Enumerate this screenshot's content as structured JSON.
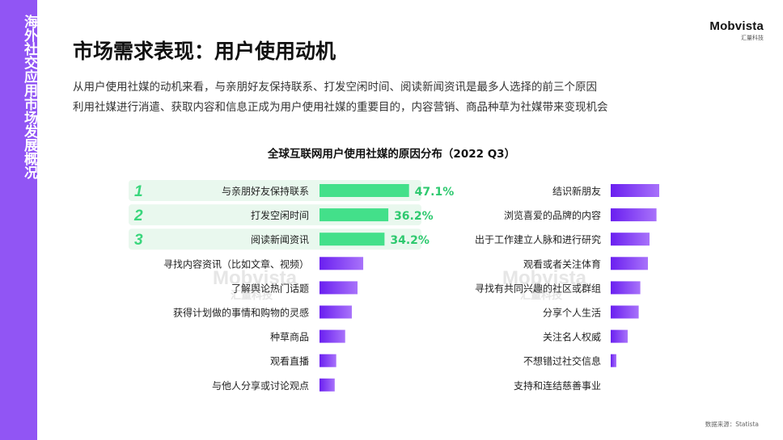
{
  "sidebar": {
    "text": "海外社交应用市场发展概况"
  },
  "logo": {
    "word": "Mobvista",
    "sub": "汇量科技"
  },
  "header": {
    "title": "市场需求表现：用户使用动机"
  },
  "description": {
    "line1": "从用户使用社媒的动机来看，与亲朋好友保持联系、打发空闲时间、阅读新闻资讯是最多人选择的前三个原因",
    "line2": "利用社媒进行消遣、获取内容和信息正成为用户使用社媒的重要目的，内容营销、商品种草为社媒带来变现机会"
  },
  "source": "数据来源：Statista",
  "colors": {
    "sidebar": "#9155f4",
    "bar_gradient_start": "#6a1ff0",
    "bar_gradient_end": "#a872fa",
    "top_bar": "#43e08a",
    "top_highlight": "#e9f8ee",
    "top_value": "#2ec96f",
    "rank": "#39d67c"
  },
  "chart_data": {
    "type": "bar",
    "orientation": "horizontal",
    "title": "全球互联网用户使用社媒的原因分布（2022 Q3）",
    "unit": "%",
    "left": {
      "categories": [
        "与亲朋好友保持联系",
        "打发空闲时间",
        "阅读新闻资讯",
        "寻找内容资讯（比如文章、视频）",
        "了解舆论热门话题",
        "获得计划做的事情和购物的灵感",
        "种草商品",
        "观看直播",
        "与他人分享或讨论观点"
      ],
      "values": [
        47.1,
        36.2,
        34.2,
        23.0,
        20.0,
        17.0,
        13.5,
        8.8,
        8.0
      ],
      "value_labels": [
        "47.1%",
        "36.2%",
        "34.2%",
        "",
        "",
        "",
        "",
        "",
        ""
      ],
      "ranks": [
        "1",
        "2",
        "3"
      ]
    },
    "right": {
      "categories": [
        "结识新朋友",
        "浏览喜爱的品牌的内容",
        "出于工作建立人脉和进行研究",
        "观看或者关注体育",
        "寻找有共同兴趣的社区或群组",
        "分享个人生活",
        "关注名人权威",
        "不想错过社交信息",
        "支持和连结慈善事业"
      ],
      "values": [
        30.0,
        28.3,
        24.0,
        23.0,
        18.3,
        17.3,
        10.5,
        3.5,
        0
      ]
    }
  }
}
